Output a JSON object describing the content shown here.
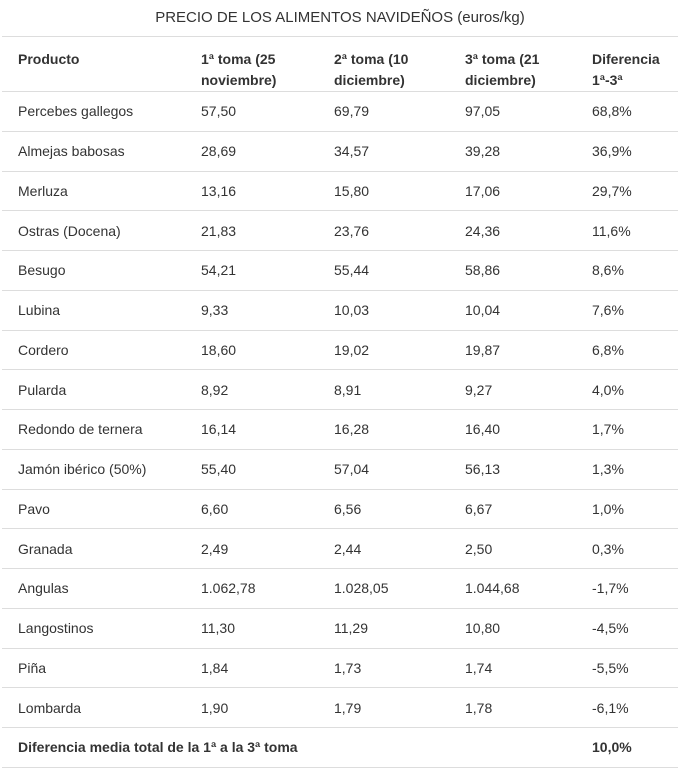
{
  "title": "PRECIO DE LOS ALIMENTOS NAVIDEÑOS (euros/kg)",
  "headers": [
    "Producto",
    "1ª toma (25 noviembre)",
    "2ª toma (10 diciembre)",
    "3ª toma (21 diciembre)",
    "Diferencia 1ª-3ª"
  ],
  "rows": [
    [
      "Percebes gallegos",
      "57,50",
      "69,79",
      "97,05",
      "68,8%"
    ],
    [
      "Almejas babosas",
      "28,69",
      "34,57",
      "39,28",
      "36,9%"
    ],
    [
      "Merluza",
      "13,16",
      "15,80",
      "17,06",
      "29,7%"
    ],
    [
      "Ostras (Docena)",
      "21,83",
      "23,76",
      "24,36",
      "11,6%"
    ],
    [
      "Besugo",
      "54,21",
      "55,44",
      "58,86",
      "8,6%"
    ],
    [
      "Lubina",
      "9,33",
      "10,03",
      "10,04",
      "7,6%"
    ],
    [
      "Cordero",
      "18,60",
      "19,02",
      "19,87",
      "6,8%"
    ],
    [
      "Pularda",
      "8,92",
      "8,91",
      "9,27",
      "4,0%"
    ],
    [
      "Redondo de ternera",
      "16,14",
      "16,28",
      "16,40",
      "1,7%"
    ],
    [
      "Jamón ibérico (50%)",
      "55,40",
      "57,04",
      "56,13",
      "1,3%"
    ],
    [
      "Pavo",
      "6,60",
      "6,56",
      "6,67",
      "1,0%"
    ],
    [
      "Granada",
      "2,49",
      "2,44",
      "2,50",
      "0,3%"
    ],
    [
      "Angulas",
      "1.062,78",
      "1.028,05",
      "1.044,68",
      "-1,7%"
    ],
    [
      "Langostinos",
      "11,30",
      "11,29",
      "10,80",
      "-4,5%"
    ],
    [
      "Piña",
      "1,84",
      "1,73",
      "1,74",
      "-5,5%"
    ],
    [
      "Lombarda",
      "1,90",
      "1,79",
      "1,78",
      "-6,1%"
    ]
  ],
  "total": {
    "label": "Diferencia media total de la 1ª a la 3ª toma",
    "value": "10,0%"
  }
}
